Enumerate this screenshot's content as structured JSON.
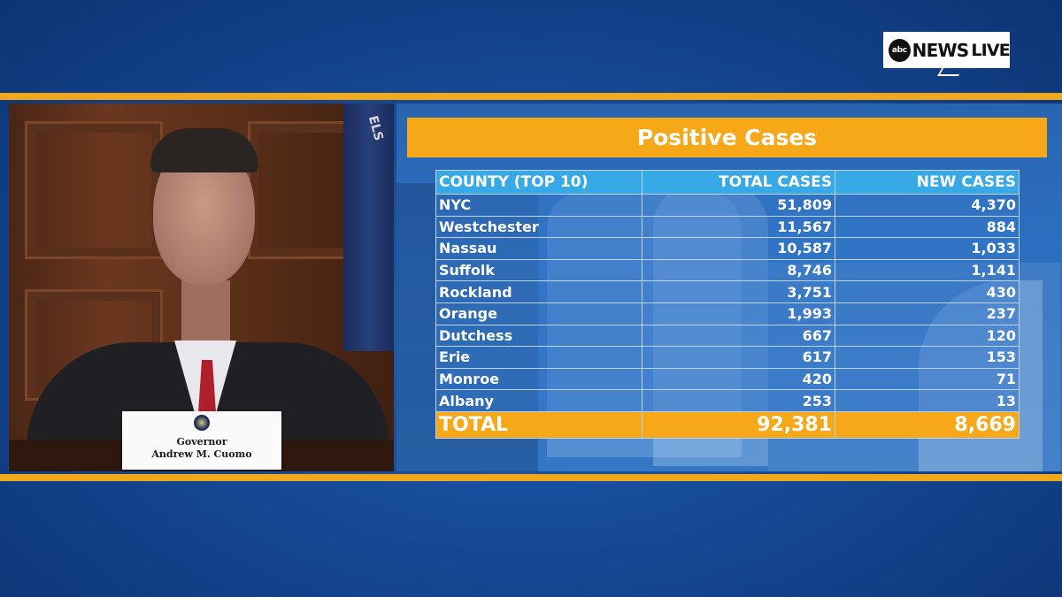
{
  "broadcast": {
    "logo_mark": "abc",
    "logo_word": "NEWS",
    "logo_live": "LIVE"
  },
  "speaker": {
    "nameplate_line1": "Governor",
    "nameplate_line2": "Andrew M. Cuomo",
    "flag_text": "ELS"
  },
  "graphic": {
    "title": "Positive Cases",
    "headers": [
      "COUNTY (TOP 10)",
      "TOTAL CASES",
      "NEW CASES"
    ],
    "rows": [
      {
        "county": "NYC",
        "total": "51,809",
        "new": "4,370"
      },
      {
        "county": "Westchester",
        "total": "11,567",
        "new": "884"
      },
      {
        "county": "Nassau",
        "total": "10,587",
        "new": "1,033"
      },
      {
        "county": "Suffolk",
        "total": "8,746",
        "new": "1,141"
      },
      {
        "county": "Rockland",
        "total": "3,751",
        "new": "430"
      },
      {
        "county": "Orange",
        "total": "1,993",
        "new": "237"
      },
      {
        "county": "Dutchess",
        "total": "667",
        "new": "120"
      },
      {
        "county": "Erie",
        "total": "617",
        "new": "153"
      },
      {
        "county": "Monroe",
        "total": "420",
        "new": "71"
      },
      {
        "county": "Albany",
        "total": "253",
        "new": "13"
      }
    ],
    "total_label": "TOTAL",
    "total_cases": "92,381",
    "total_new": "8,669"
  },
  "colors": {
    "accent_gold": "#f6a818",
    "header_blue": "#37a9e6",
    "background_blue": "#164a97"
  }
}
